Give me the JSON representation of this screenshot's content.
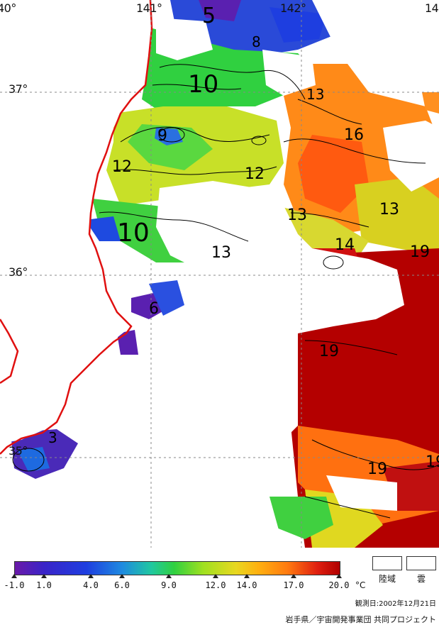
{
  "map": {
    "lon_labels": [
      "40°",
      "141°",
      "142°",
      "14"
    ],
    "lat_labels": [
      "37°",
      "36°",
      "35°"
    ],
    "isotherm_labels": [
      "5",
      "8",
      "10",
      "13",
      "9",
      "16",
      "12",
      "12",
      "13",
      "13",
      "10",
      "14",
      "13",
      "19",
      "6",
      "19",
      "3",
      "19",
      "19"
    ],
    "colors": {
      "cold": "#6a1aa8",
      "cool": "#1e3ee0",
      "mid": "#2fd060",
      "warm": "#e8d820",
      "hot": "#ff7a10",
      "very_hot": "#b00000",
      "coastline": "#e01010",
      "cloud": "#ffffff"
    }
  },
  "legend": {
    "ticks": [
      "-1.0",
      "1.0",
      "4.0",
      "6.0",
      "9.0",
      "12.0",
      "14.0",
      "17.0",
      "20.0"
    ],
    "unit": "°C",
    "land_label": "陸域",
    "cloud_label": "雲"
  },
  "footer": {
    "observation_date": "観測日:2002年12月21日",
    "credit": "岩手県／宇宙開発事業団 共同プロジェクト"
  }
}
